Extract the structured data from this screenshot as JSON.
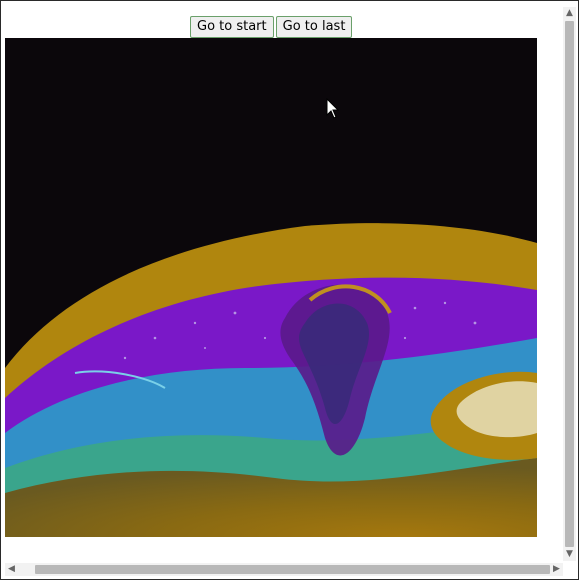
{
  "toolbar": {
    "go_to_start_label": "Go to start",
    "go_to_last_label": "Go to last"
  },
  "image": {
    "name": "soap-bubble-thin-film",
    "colors": {
      "background": "#0b070b",
      "gold": "#b0860e",
      "purple": "#7a18c8",
      "blue": "#3290c8",
      "teal": "#3aa58c",
      "cream": "#e0d3a2"
    }
  },
  "icons": {
    "cursor": "mouse-pointer-icon",
    "scroll_up": "chevron-up-icon",
    "scroll_down": "chevron-down-icon",
    "scroll_left": "chevron-left-icon",
    "scroll_right": "chevron-right-icon"
  }
}
